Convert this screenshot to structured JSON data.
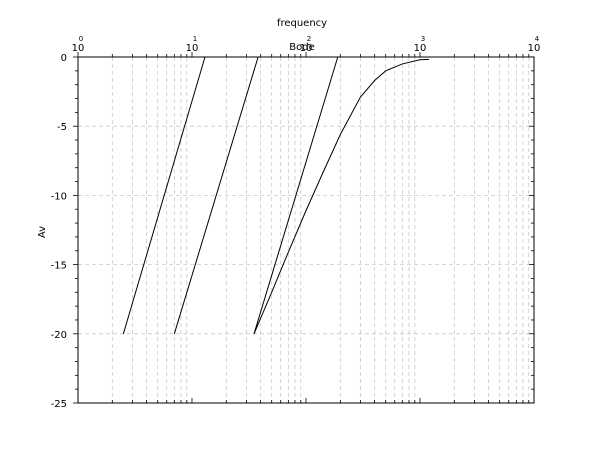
{
  "chart_data": {
    "type": "line",
    "title": "Bode",
    "xlabel": "frequency",
    "ylabel": "Av",
    "xscale": "log",
    "xlim": [
      1,
      10000
    ],
    "ylim": [
      -25,
      0
    ],
    "x_axis_position": "top",
    "grid": true,
    "x_ticks": [
      {
        "base": "10",
        "exp": "0"
      },
      {
        "base": "10",
        "exp": "1"
      },
      {
        "base": "10",
        "exp": "2"
      },
      {
        "base": "10",
        "exp": "3"
      },
      {
        "base": "10",
        "exp": "4"
      }
    ],
    "y_ticks": [
      "0",
      "-5",
      "-10",
      "-15",
      "-20",
      "-25"
    ],
    "series": [
      {
        "x": [
          2.5,
          13.0
        ],
        "y": [
          -20,
          0
        ]
      },
      {
        "x": [
          7.0,
          38.0
        ],
        "y": [
          -20,
          0
        ]
      },
      {
        "x": [
          35.0,
          190.0
        ],
        "y": [
          -20,
          0
        ]
      },
      {
        "x": [
          35,
          50,
          70,
          100,
          140,
          200,
          300,
          400,
          500,
          700,
          1000,
          1200
        ],
        "y": [
          -20,
          -17.0,
          -14.1,
          -11.1,
          -8.4,
          -5.6,
          -2.9,
          -1.7,
          -1.0,
          -0.5,
          -0.2,
          -0.17
        ]
      }
    ]
  }
}
